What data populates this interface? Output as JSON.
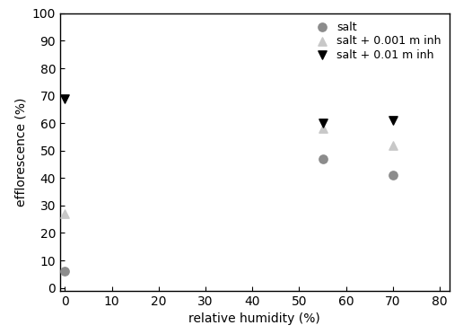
{
  "chart_data": {
    "type": "scatter",
    "x_label": "relative humidity (%)",
    "y_label": "efflorescence (%)",
    "xlim": [
      -1,
      82
    ],
    "ylim": [
      -1,
      100
    ],
    "xticks": [
      0,
      10,
      20,
      30,
      40,
      50,
      60,
      70,
      80
    ],
    "yticks": [
      0,
      10,
      20,
      30,
      40,
      50,
      60,
      70,
      80,
      90,
      100
    ],
    "grid": false,
    "legend": "upper right",
    "series": [
      {
        "name": "salt",
        "color": "#8c8c8c",
        "marker": "circle",
        "x": [
          0,
          55,
          70
        ],
        "values": [
          6,
          47,
          41
        ]
      },
      {
        "name": "salt + 0.001 m inh",
        "color": "#c8c8c8",
        "marker": "triangle_up",
        "x": [
          0,
          55,
          70
        ],
        "values": [
          27,
          58,
          52
        ]
      },
      {
        "name": "salt + 0.01 m inh",
        "color": "#000000",
        "marker": "triangle_down",
        "x": [
          0,
          55,
          70
        ],
        "values": [
          69,
          60,
          61
        ]
      }
    ]
  }
}
